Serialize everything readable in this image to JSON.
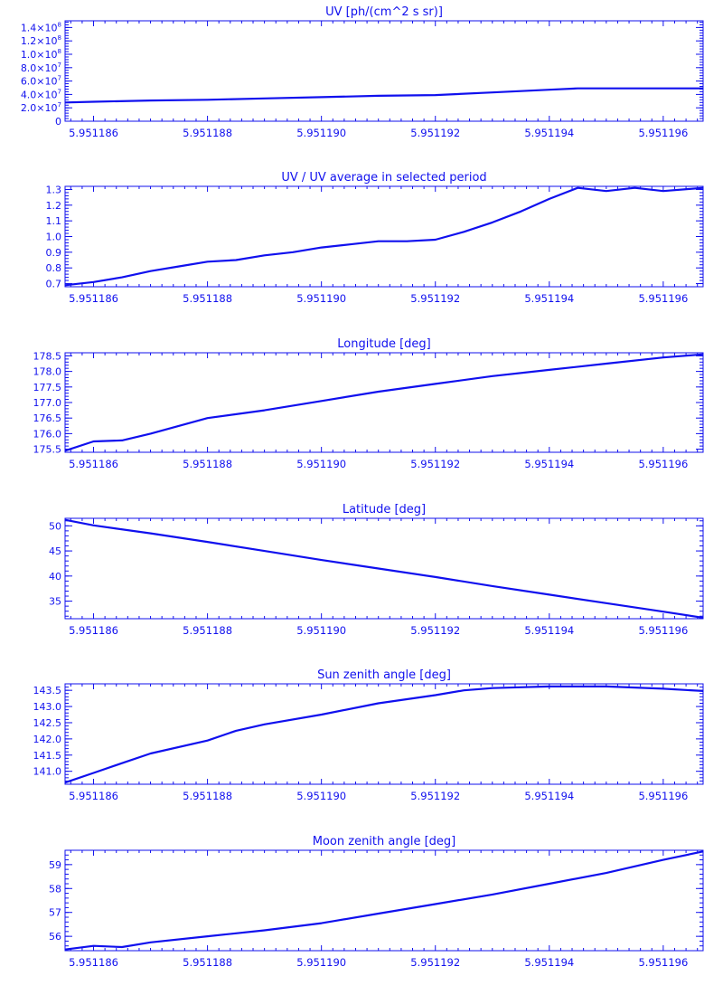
{
  "colors": {
    "line": "#1010ee",
    "background": "#ffffff"
  },
  "x_ticks": [
    "5.951186",
    "5.951188",
    "5.951190",
    "5.951192",
    "5.951194",
    "5.951196"
  ],
  "chart_data": [
    {
      "type": "line",
      "title": "UV [ph/(cm^2 s sr)]",
      "xlim": [
        5.9511855,
        5.9511967
      ],
      "ylim": [
        0,
        150000000
      ],
      "yticks": [
        {
          "value": 0,
          "mantissa": "0",
          "exp": ""
        },
        {
          "value": 20000000,
          "mantissa": "2.0×10",
          "exp": "7"
        },
        {
          "value": 40000000,
          "mantissa": "4.0×10",
          "exp": "7"
        },
        {
          "value": 60000000,
          "mantissa": "6.0×10",
          "exp": "7"
        },
        {
          "value": 80000000,
          "mantissa": "8.0×10",
          "exp": "7"
        },
        {
          "value": 100000000,
          "mantissa": "1.0×10",
          "exp": "8"
        },
        {
          "value": 120000000,
          "mantissa": "1.2×10",
          "exp": "8"
        },
        {
          "value": 140000000,
          "mantissa": "1.4×10",
          "exp": "8"
        }
      ],
      "series": [
        {
          "x": [
            5.9511855,
            5.951186,
            5.951187,
            5.951188,
            5.951189,
            5.95119,
            5.951191,
            5.951192,
            5.951193,
            5.951194,
            5.9511945,
            5.951195,
            5.951196,
            5.9511967
          ],
          "y": [
            28000000,
            29000000,
            31000000,
            32000000,
            34000000,
            36000000,
            38000000,
            39000000,
            43000000,
            47000000,
            49000000,
            49000000,
            49000000,
            49000000
          ]
        }
      ]
    },
    {
      "type": "line",
      "title": "UV / UV average in selected period",
      "xlim": [
        5.9511855,
        5.9511967
      ],
      "ylim": [
        0.68,
        1.32
      ],
      "yticks": [
        {
          "value": 0.7,
          "label": "0.7"
        },
        {
          "value": 0.8,
          "label": "0.8"
        },
        {
          "value": 0.9,
          "label": "0.9"
        },
        {
          "value": 1.0,
          "label": "1.0"
        },
        {
          "value": 1.1,
          "label": "1.1"
        },
        {
          "value": 1.2,
          "label": "1.2"
        },
        {
          "value": 1.3,
          "label": "1.3"
        }
      ],
      "series": [
        {
          "x": [
            5.9511855,
            5.951186,
            5.9511865,
            5.951187,
            5.9511875,
            5.951188,
            5.9511885,
            5.951189,
            5.9511895,
            5.95119,
            5.9511905,
            5.951191,
            5.9511915,
            5.951192,
            5.9511925,
            5.951193,
            5.9511935,
            5.951194,
            5.9511945,
            5.951195,
            5.9511955,
            5.951196,
            5.9511967
          ],
          "y": [
            0.69,
            0.71,
            0.74,
            0.78,
            0.81,
            0.84,
            0.85,
            0.88,
            0.9,
            0.93,
            0.95,
            0.97,
            0.97,
            0.98,
            1.03,
            1.09,
            1.16,
            1.24,
            1.31,
            1.29,
            1.31,
            1.29,
            1.31
          ]
        }
      ]
    },
    {
      "type": "line",
      "title": "Longitude [deg]",
      "xlim": [
        5.9511855,
        5.9511967
      ],
      "ylim": [
        175.4,
        178.6
      ],
      "yticks": [
        {
          "value": 175.5,
          "label": "175.5"
        },
        {
          "value": 176.0,
          "label": "176.0"
        },
        {
          "value": 176.5,
          "label": "176.5"
        },
        {
          "value": 177.0,
          "label": "177.0"
        },
        {
          "value": 177.5,
          "label": "177.5"
        },
        {
          "value": 178.0,
          "label": "178.0"
        },
        {
          "value": 178.5,
          "label": "178.5"
        }
      ],
      "series": [
        {
          "x": [
            5.9511855,
            5.951186,
            5.9511865,
            5.951187,
            5.951188,
            5.951189,
            5.95119,
            5.951191,
            5.951192,
            5.951193,
            5.951194,
            5.951195,
            5.951196,
            5.9511967
          ],
          "y": [
            175.45,
            175.75,
            175.78,
            176.0,
            176.5,
            176.75,
            177.05,
            177.35,
            177.6,
            177.85,
            178.05,
            178.25,
            178.45,
            178.55
          ]
        }
      ]
    },
    {
      "type": "line",
      "title": "Latitude [deg]",
      "xlim": [
        5.9511855,
        5.9511967
      ],
      "ylim": [
        31.5,
        51.5
      ],
      "yticks": [
        {
          "value": 35,
          "label": "35"
        },
        {
          "value": 40,
          "label": "40"
        },
        {
          "value": 45,
          "label": "45"
        },
        {
          "value": 50,
          "label": "50"
        }
      ],
      "series": [
        {
          "x": [
            5.9511855,
            5.951186,
            5.951187,
            5.951188,
            5.951189,
            5.95119,
            5.951191,
            5.951192,
            5.951193,
            5.951194,
            5.951195,
            5.951196,
            5.9511967
          ],
          "y": [
            51.2,
            50.1,
            48.5,
            46.8,
            45.0,
            43.2,
            41.5,
            39.8,
            38.0,
            36.3,
            34.6,
            32.9,
            31.7
          ]
        }
      ]
    },
    {
      "type": "line",
      "title": "Sun zenith angle [deg]",
      "xlim": [
        5.9511855,
        5.9511967
      ],
      "ylim": [
        140.6,
        143.7
      ],
      "yticks": [
        {
          "value": 141.0,
          "label": "141.0"
        },
        {
          "value": 141.5,
          "label": "141.5"
        },
        {
          "value": 142.0,
          "label": "142.0"
        },
        {
          "value": 142.5,
          "label": "142.5"
        },
        {
          "value": 143.0,
          "label": "143.0"
        },
        {
          "value": 143.5,
          "label": "143.5"
        }
      ],
      "series": [
        {
          "x": [
            5.9511855,
            5.951186,
            5.9511865,
            5.951187,
            5.951188,
            5.9511885,
            5.951189,
            5.95119,
            5.951191,
            5.951192,
            5.9511925,
            5.951193,
            5.951194,
            5.951195,
            5.951196,
            5.9511967
          ],
          "y": [
            140.65,
            140.95,
            141.25,
            141.55,
            141.95,
            142.25,
            142.45,
            142.75,
            143.1,
            143.35,
            143.5,
            143.57,
            143.62,
            143.62,
            143.55,
            143.48
          ]
        }
      ]
    },
    {
      "type": "line",
      "title": "Moon zenith angle [deg]",
      "xlim": [
        5.9511855,
        5.9511967
      ],
      "ylim": [
        55.4,
        59.6
      ],
      "yticks": [
        {
          "value": 56,
          "label": "56"
        },
        {
          "value": 57,
          "label": "57"
        },
        {
          "value": 58,
          "label": "58"
        },
        {
          "value": 59,
          "label": "59"
        }
      ],
      "series": [
        {
          "x": [
            5.9511855,
            5.951186,
            5.9511865,
            5.951187,
            5.951188,
            5.951189,
            5.95119,
            5.951191,
            5.951192,
            5.951193,
            5.951194,
            5.951195,
            5.951196,
            5.9511967
          ],
          "y": [
            55.45,
            55.6,
            55.55,
            55.75,
            56.0,
            56.25,
            56.55,
            56.95,
            57.35,
            57.75,
            58.2,
            58.65,
            59.2,
            59.55
          ]
        }
      ]
    }
  ]
}
